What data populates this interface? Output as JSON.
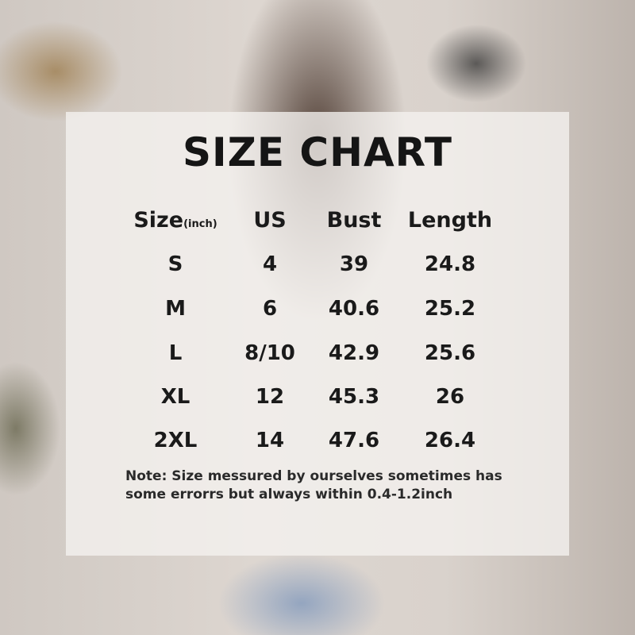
{
  "title": "SIZE CHART",
  "headers": {
    "size": "Size",
    "size_unit": "(inch)",
    "us": "US",
    "bust": "Bust",
    "length": "Length"
  },
  "rows": [
    {
      "size": "S",
      "us": "4",
      "bust": "39",
      "length": "24.8"
    },
    {
      "size": "M",
      "us": "6",
      "bust": "40.6",
      "length": "25.2"
    },
    {
      "size": "L",
      "us": "8/10",
      "bust": "42.9",
      "length": "25.6"
    },
    {
      "size": "XL",
      "us": "12",
      "bust": "45.3",
      "length": "26"
    },
    {
      "size": "2XL",
      "us": "14",
      "bust": "47.6",
      "length": "26.4"
    }
  ],
  "note": "Note:  Size messured by ourselves sometimes has some errorrs but always within 0.4-1.2inch"
}
